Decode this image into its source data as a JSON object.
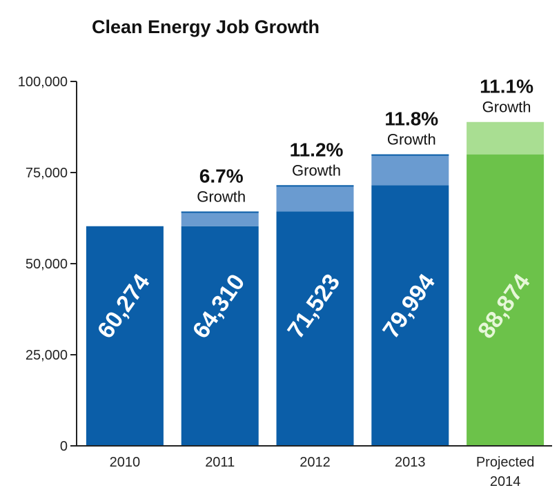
{
  "chart_data": {
    "type": "bar",
    "title": "Clean Energy Job Growth",
    "categories": [
      [
        "2010"
      ],
      [
        "2011"
      ],
      [
        "2012"
      ],
      [
        "2013"
      ],
      [
        "Projected",
        "2014"
      ]
    ],
    "values": [
      60274,
      64310,
      71523,
      79994,
      88874
    ],
    "value_labels": [
      "60,274",
      "64,310",
      "71,523",
      "79,994",
      "88,874"
    ],
    "growth_labels": [
      null,
      {
        "pct": "6.7%",
        "word": "Growth"
      },
      {
        "pct": "11.2%",
        "word": "Growth"
      },
      {
        "pct": "11.8%",
        "word": "Growth"
      },
      {
        "pct": "11.1%",
        "word": "Growth"
      }
    ],
    "yticks": [
      0,
      25000,
      50000,
      75000,
      100000
    ],
    "ytick_labels": [
      "0",
      "25,000",
      "50,000",
      "75,000",
      "100,000"
    ],
    "ylim": [
      0,
      100000
    ],
    "grid": false,
    "colors": {
      "bar": "#0b5ea8",
      "bar_growth": "#6a9bd0",
      "projected": "#6cc24a",
      "projected_growth": "#a9de92",
      "value_label": "#ffffff",
      "projected_value_label": "#e6f7d8",
      "axis": "#222222"
    }
  }
}
